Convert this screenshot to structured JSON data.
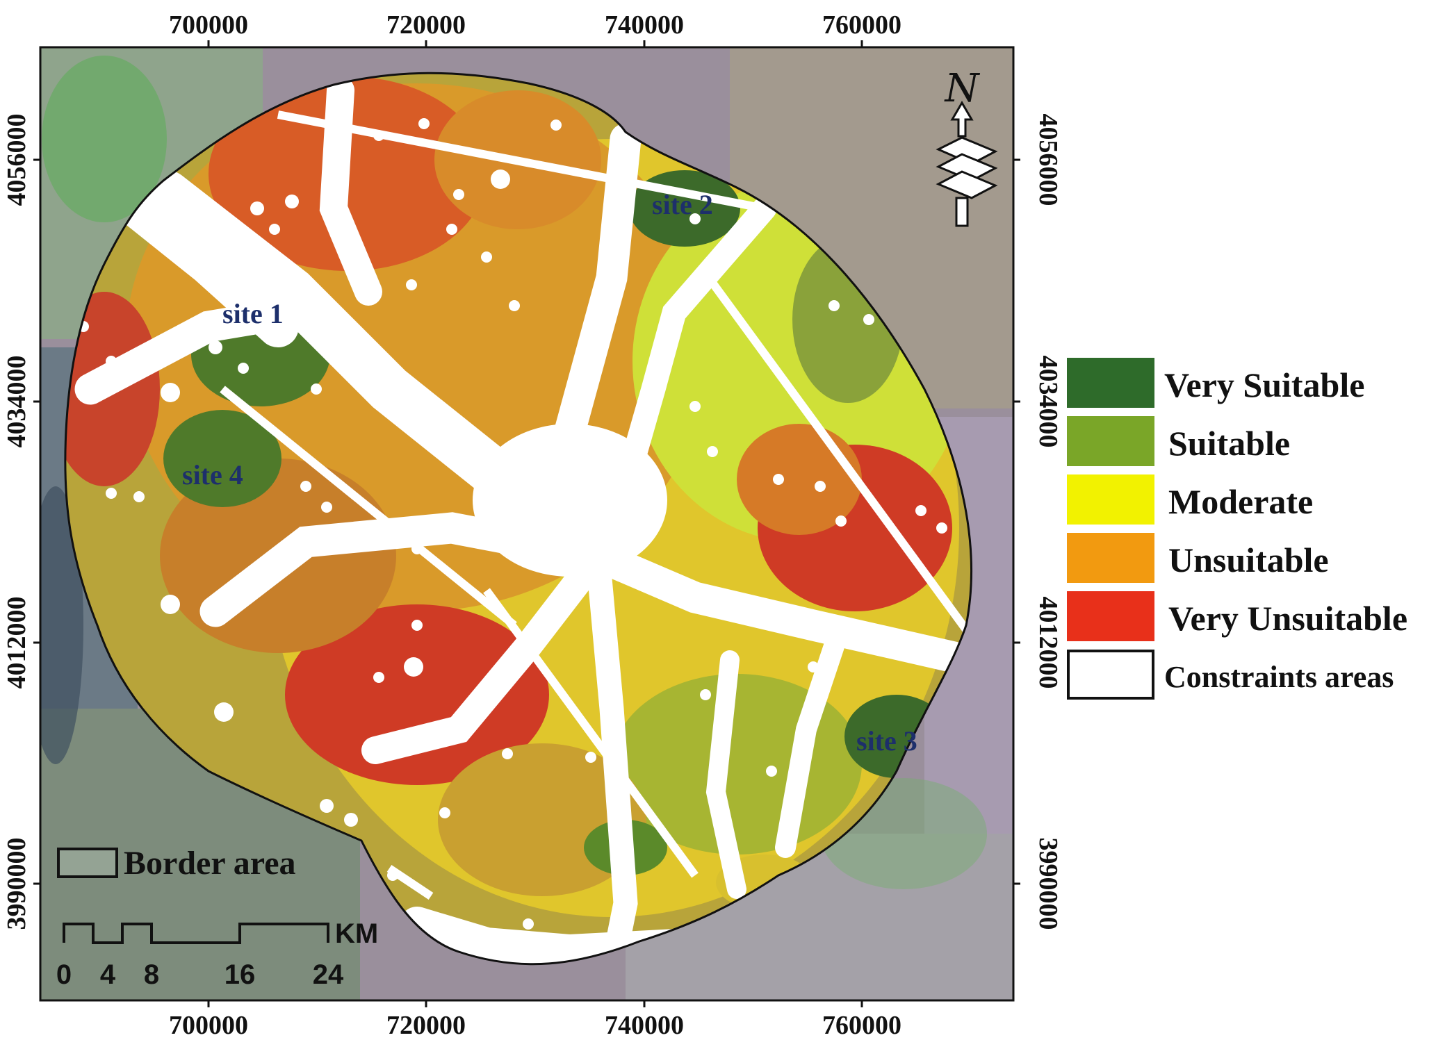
{
  "map": {
    "x_ticks": [
      "700000",
      "720000",
      "740000",
      "760000"
    ],
    "y_ticks": [
      "4056000",
      "4034000",
      "4012000",
      "3990000"
    ],
    "north_label": "N",
    "sites": [
      "site 1",
      "site 2",
      "site 3",
      "site 4"
    ],
    "border_label": "Border area",
    "scale_unit": "KM",
    "scale_labels": [
      "0",
      "4",
      "8",
      "16",
      "24"
    ]
  },
  "legend": {
    "items": [
      {
        "label": "Very Suitable",
        "color": "#2e6b2a"
      },
      {
        "label": "Suitable",
        "color": "#7aa628"
      },
      {
        "label": "Moderate",
        "color": "#f2f200"
      },
      {
        "label": "Unsuitable",
        "color": "#f29a10"
      },
      {
        "label": "Very Unsuitable",
        "color": "#e8301a"
      },
      {
        "label": "Constraints areas",
        "color": "#ffffff"
      }
    ]
  }
}
